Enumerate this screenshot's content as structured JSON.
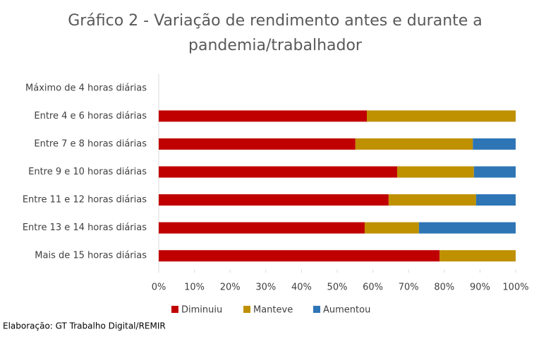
{
  "chart_data": {
    "type": "stacked-bar-horizontal",
    "title": [
      "Gráfico 2 - Variação de rendimento antes e durante a",
      "pandemia/trabalhador"
    ],
    "categories": [
      "Máximo de 4 horas diárias",
      "Entre 4 e 6 horas diárias",
      "Entre 7 e 8 horas diárias",
      "Entre 9 e 10 horas diárias",
      "Entre 11 e 12 horas diárias",
      "Entre 13 e 14 horas diárias",
      "Mais de 15 horas diárias"
    ],
    "series": [
      {
        "name": "Diminuiu",
        "color": "#c00000",
        "values": [
          0,
          58.3,
          55.1,
          66.8,
          64.4,
          57.7,
          78.7
        ]
      },
      {
        "name": "Manteve",
        "color": "#bf9000",
        "values": [
          0,
          41.7,
          32.9,
          21.5,
          24.5,
          15.2,
          21.3
        ]
      },
      {
        "name": "Aumentou",
        "color": "#2e75b6",
        "values": [
          0,
          0,
          12.0,
          11.7,
          11.1,
          27.1,
          0
        ]
      }
    ],
    "xlim": [
      0,
      100
    ],
    "xticks": [
      {
        "value": 0,
        "label": "0%"
      },
      {
        "value": 10,
        "label": "10%"
      },
      {
        "value": 20,
        "label": "20%"
      },
      {
        "value": 30,
        "label": "30%"
      },
      {
        "value": 40,
        "label": "40%"
      },
      {
        "value": 50,
        "label": "50%"
      },
      {
        "value": 60,
        "label": "60%"
      },
      {
        "value": 70,
        "label": "70%"
      },
      {
        "value": 80,
        "label": "80%"
      },
      {
        "value": 90,
        "label": "90%"
      },
      {
        "value": 100,
        "label": "100%"
      }
    ],
    "legend": "bottom",
    "source": "Elaboração: GT Trabalho Digital/REMIR"
  }
}
